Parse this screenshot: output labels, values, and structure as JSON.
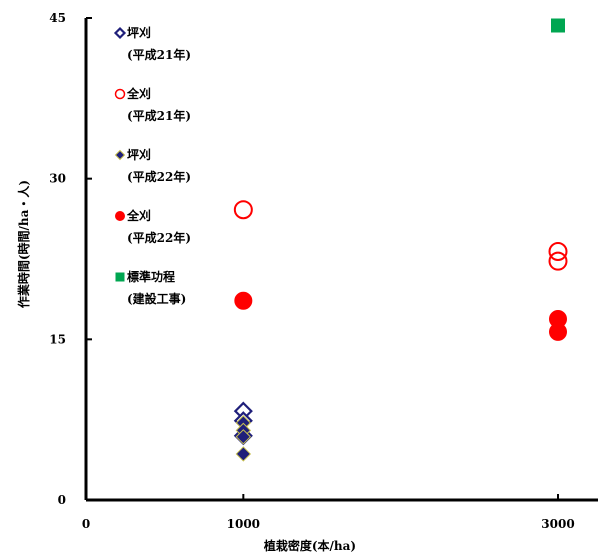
{
  "chart_data": {
    "type": "scatter",
    "title": "",
    "xlabel": "植栽密度(本/ha)",
    "ylabel": "作業時間(時間/ha・人)",
    "xlim": [
      0,
      3000
    ],
    "ylim": [
      0,
      45
    ],
    "x_ticks": [
      {
        "value": 0,
        "label": "0"
      },
      {
        "value": 1000,
        "label": "1000"
      },
      {
        "value": 3000,
        "label": "3000"
      }
    ],
    "y_ticks": [
      {
        "value": 0,
        "label": "0"
      },
      {
        "value": 15,
        "label": "15"
      },
      {
        "value": 30,
        "label": "30"
      },
      {
        "value": 45,
        "label": "45"
      }
    ],
    "grid": false,
    "legend_position": "top-left",
    "series": [
      {
        "name": "坪刈\n(平成21年)",
        "marker": "diamond-open",
        "color": "#1f1f7a",
        "points": [
          {
            "x": 1000,
            "y": 8.3
          },
          {
            "x": 1000,
            "y": 7.4
          },
          {
            "x": 1000,
            "y": 6.0
          }
        ]
      },
      {
        "name": "全刈\n(平成21年)",
        "marker": "circle-open",
        "color": "#ff0000",
        "points": [
          {
            "x": 1000,
            "y": 27.1
          },
          {
            "x": 3000,
            "y": 23.2
          },
          {
            "x": 3000,
            "y": 22.3
          }
        ]
      },
      {
        "name": "坪刈\n(平成22年)",
        "marker": "diamond-filled",
        "color": "#1f1f7a",
        "points": [
          {
            "x": 1000,
            "y": 7.2
          },
          {
            "x": 1000,
            "y": 6.5
          },
          {
            "x": 1000,
            "y": 5.9
          },
          {
            "x": 1000,
            "y": 4.3
          }
        ]
      },
      {
        "name": "全刈\n(平成22年)",
        "marker": "circle-filled",
        "color": "#ff0000",
        "points": [
          {
            "x": 1000,
            "y": 18.6
          },
          {
            "x": 3000,
            "y": 16.9
          },
          {
            "x": 3000,
            "y": 15.7
          }
        ]
      },
      {
        "name": "標準功程\n(建設工事)",
        "marker": "square-filled",
        "color": "#00a651",
        "points": [
          {
            "x": 3000,
            "y": 44.3
          }
        ]
      }
    ]
  }
}
